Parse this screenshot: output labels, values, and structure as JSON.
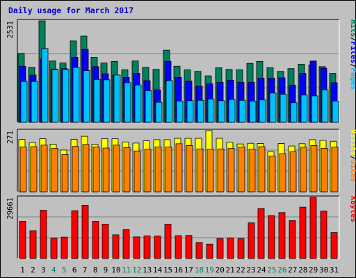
{
  "chart_data": {
    "type": "bar",
    "title": "Daily usage for March 2017",
    "categories": [
      "1",
      "2",
      "3",
      "4",
      "5",
      "6",
      "7",
      "8",
      "9",
      "10",
      "11",
      "12",
      "13",
      "14",
      "15",
      "16",
      "17",
      "18",
      "19",
      "20",
      "21",
      "22",
      "23",
      "24",
      "25",
      "26",
      "27",
      "28",
      "29",
      "30",
      "31"
    ],
    "weekend_days": [
      "4",
      "5",
      "11",
      "12",
      "18",
      "19",
      "25",
      "26"
    ],
    "colors": {
      "background": "#c0c0c0",
      "title": "#0000cc",
      "hits": "#00805c",
      "files": "#0000ff",
      "pages": "#00c0ff",
      "visits": "#ffff00",
      "sites": "#ff8000",
      "kbytes": "#ff0000",
      "weekend_label": "#00805c",
      "weekday_label": "#000000"
    },
    "panels": [
      {
        "name": "hits-files-pages",
        "max_label": "2531",
        "ylim": [
          0,
          2531
        ],
        "legend": [
          {
            "label": "Pages",
            "color": "#00c0ff"
          },
          {
            "label": "Files",
            "color": "#0000ff"
          },
          {
            "label": "Hits",
            "color": "#00805c"
          }
        ],
        "series": [
          {
            "name": "Hits",
            "color": "#00805c",
            "values": [
              1720,
              1370,
              2531,
              1530,
              1480,
              2030,
              2150,
              1620,
              1480,
              1520,
              1310,
              1530,
              1370,
              1320,
              1800,
              1400,
              1310,
              1270,
              1160,
              1360,
              1320,
              1310,
              1470,
              1520,
              1360,
              1270,
              1340,
              1450,
              1430,
              1390,
              1220
            ]
          },
          {
            "name": "Files",
            "color": "#0000ff",
            "values": [
              1400,
              1180,
              1580,
              1330,
              1340,
              1620,
              1820,
              1390,
              1210,
              1170,
              1120,
              1220,
              1040,
              810,
              1520,
              1120,
              1030,
              900,
              960,
              1000,
              1050,
              1000,
              1000,
              1100,
              1100,
              1110,
              930,
              1220,
              1530,
              1350,
              990
            ]
          },
          {
            "name": "Pages",
            "color": "#00c0ff",
            "values": [
              1020,
              1020,
              1840,
              1310,
              1320,
              1370,
              1290,
              1070,
              1060,
              1180,
              990,
              930,
              790,
              500,
              1040,
              530,
              540,
              550,
              580,
              540,
              570,
              550,
              530,
              560,
              730,
              700,
              490,
              680,
              660,
              810,
              530
            ]
          }
        ]
      },
      {
        "name": "visits-sites",
        "max_label": "271",
        "ylim": [
          0,
          271
        ],
        "legend": [
          {
            "label": "Sites",
            "color": "#ff8000"
          },
          {
            "label": "Visits",
            "color": "#ffff00"
          }
        ],
        "series": [
          {
            "name": "Visits",
            "color": "#ffff00",
            "values": [
              232,
              218,
              235,
              211,
              185,
              233,
              246,
              210,
              235,
              235,
              221,
              216,
              226,
              231,
              231,
              237,
              237,
              237,
              271,
              237,
              220,
              212,
              215,
              214,
              178,
              214,
              203,
              213,
              231,
              228,
              224
            ]
          },
          {
            "name": "Sites",
            "color": "#ff8000",
            "values": [
              199,
              200,
              207,
              192,
              165,
              201,
              210,
              199,
              194,
              207,
              196,
              181,
              189,
              199,
              199,
              213,
              205,
              190,
              189,
              190,
              192,
              198,
              189,
              200,
              158,
              169,
              178,
              198,
              205,
              193,
              198
            ]
          }
        ]
      },
      {
        "name": "kbytes",
        "max_label": "29661",
        "ylim": [
          0,
          29661
        ],
        "legend": [
          {
            "label": "KBytes",
            "color": "#ff0000"
          }
        ],
        "series": [
          {
            "name": "KBytes",
            "color": "#ff0000",
            "values": [
              18000,
              13500,
              23400,
              9900,
              10400,
              23200,
              25800,
              18000,
              16700,
              11500,
              14000,
              10500,
              11000,
              10900,
              16700,
              11100,
              11200,
              7800,
              7000,
              9700,
              10000,
              9700,
              17300,
              24300,
              20800,
              22300,
              18400,
              24900,
              29661,
              23000,
              12600
            ]
          }
        ]
      }
    ]
  }
}
